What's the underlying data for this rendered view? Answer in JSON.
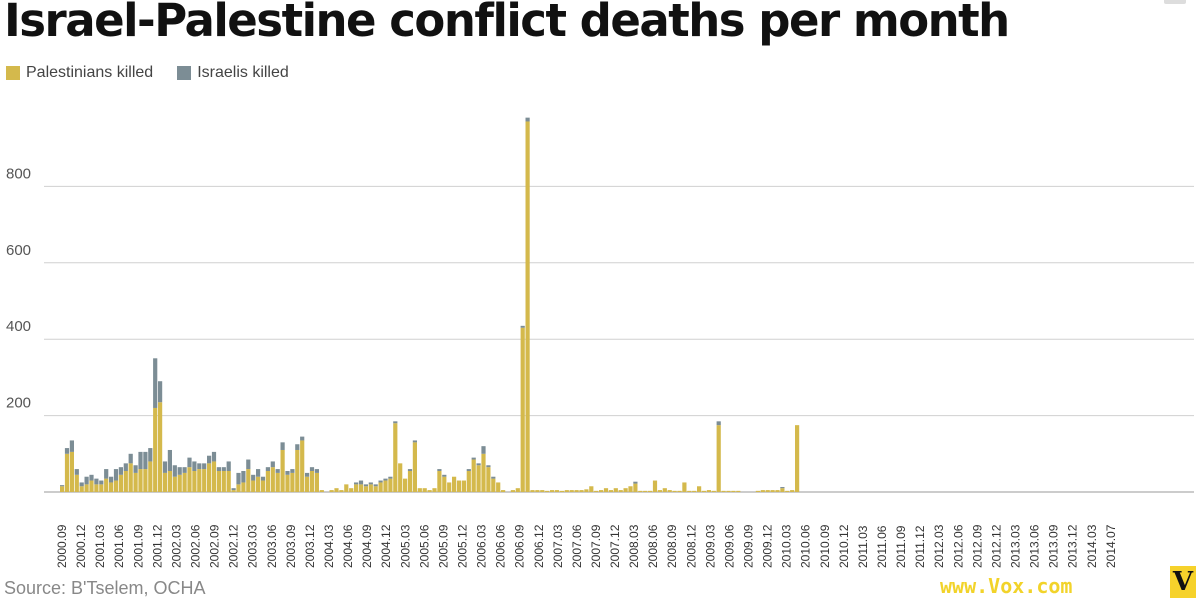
{
  "chart_data": {
    "type": "bar",
    "stacked": true,
    "title": "Israel-Palestine conflict deaths per month",
    "source": "Source: B'Tselem, OCHA",
    "credit": "www.Vox.com",
    "logo_letter": "V",
    "xlabel": "",
    "ylabel": "",
    "ylim": [
      0,
      1000
    ],
    "yticks": [
      200,
      400,
      600,
      800
    ],
    "grid": true,
    "legend_position": "top-left",
    "colors": {
      "Palestinians killed": "#d4b94c",
      "Israelis killed": "#7c8d95"
    },
    "start_month": "2000.09",
    "x_tick_labels": [
      "2000.09",
      "2000.12",
      "2001.03",
      "2001.06",
      "2001.09",
      "2001.12",
      "2002.03",
      "2002.06",
      "2002.09",
      "2002.12",
      "2003.03",
      "2003.06",
      "2003.09",
      "2003.12",
      "2004.03",
      "2004.06",
      "2004.09",
      "2004.12",
      "2005.03",
      "2005.06",
      "2005.09",
      "2005.12",
      "2006.03",
      "2006.06",
      "2006.09",
      "2006.12",
      "2007.03",
      "2007.06",
      "2007.09",
      "2007.12",
      "2008.03",
      "2008.06",
      "2008.09",
      "2008.12",
      "2009.03",
      "2009.06",
      "2009.09",
      "2009.12",
      "2010.03",
      "2010.06",
      "2010.09",
      "2010.12",
      "2011.03",
      "2011.06",
      "2011.09",
      "2011.12",
      "2012.03",
      "2012.06",
      "2012.09",
      "2012.12",
      "2013.03",
      "2013.06",
      "2013.09",
      "2013.12",
      "2014.03",
      "2014.07"
    ],
    "series": [
      {
        "name": "Palestinians killed",
        "values": [
          15,
          100,
          105,
          45,
          15,
          20,
          30,
          20,
          20,
          35,
          25,
          30,
          45,
          55,
          75,
          50,
          60,
          60,
          80,
          220,
          235,
          50,
          55,
          40,
          45,
          50,
          65,
          55,
          60,
          60,
          75,
          80,
          55,
          55,
          55,
          5,
          20,
          25,
          60,
          30,
          40,
          30,
          55,
          65,
          50,
          110,
          45,
          50,
          110,
          135,
          40,
          55,
          50,
          5,
          0,
          5,
          10,
          5,
          20,
          10,
          20,
          20,
          15,
          20,
          15,
          25,
          30,
          35,
          180,
          75,
          35,
          55,
          130,
          10,
          10,
          5,
          10,
          55,
          40,
          25,
          40,
          30,
          30,
          55,
          85,
          70,
          100,
          65,
          35,
          25,
          5,
          0,
          5,
          10,
          430,
          970,
          5,
          5,
          5,
          3,
          5,
          5,
          3,
          5,
          5,
          5,
          5,
          7,
          15,
          3,
          5,
          10,
          5,
          10,
          5,
          10,
          15,
          22,
          3,
          3,
          3,
          30,
          5,
          10,
          5,
          3,
          3,
          25,
          3,
          3,
          15,
          3,
          5,
          3,
          175,
          3,
          3,
          3,
          3,
          0,
          0,
          0,
          3,
          5,
          5,
          5,
          5,
          10,
          3,
          5,
          175
        ],
        "note": ""
      },
      {
        "name": "Israelis killed",
        "values": [
          3,
          15,
          30,
          15,
          10,
          20,
          15,
          15,
          10,
          25,
          15,
          30,
          20,
          20,
          25,
          20,
          45,
          45,
          35,
          130,
          55,
          30,
          55,
          30,
          20,
          15,
          25,
          25,
          15,
          15,
          20,
          25,
          10,
          10,
          25,
          5,
          30,
          30,
          25,
          15,
          20,
          10,
          10,
          15,
          10,
          20,
          10,
          10,
          15,
          10,
          10,
          10,
          10,
          0,
          0,
          0,
          0,
          0,
          0,
          0,
          5,
          10,
          5,
          5,
          5,
          5,
          5,
          5,
          5,
          0,
          0,
          5,
          5,
          0,
          0,
          0,
          0,
          5,
          5,
          0,
          0,
          0,
          0,
          5,
          5,
          5,
          20,
          5,
          5,
          0,
          0,
          0,
          0,
          0,
          5,
          10,
          0,
          0,
          0,
          0,
          0,
          0,
          0,
          0,
          0,
          0,
          0,
          0,
          0,
          0,
          0,
          0,
          0,
          0,
          0,
          0,
          0,
          5,
          0,
          0,
          0,
          0,
          0,
          0,
          0,
          0,
          0,
          0,
          0,
          0,
          0,
          0,
          0,
          0,
          10,
          0,
          0,
          0,
          0,
          0,
          0,
          0,
          0,
          0,
          0,
          0,
          0,
          3,
          0,
          0,
          0
        ]
      }
    ]
  }
}
